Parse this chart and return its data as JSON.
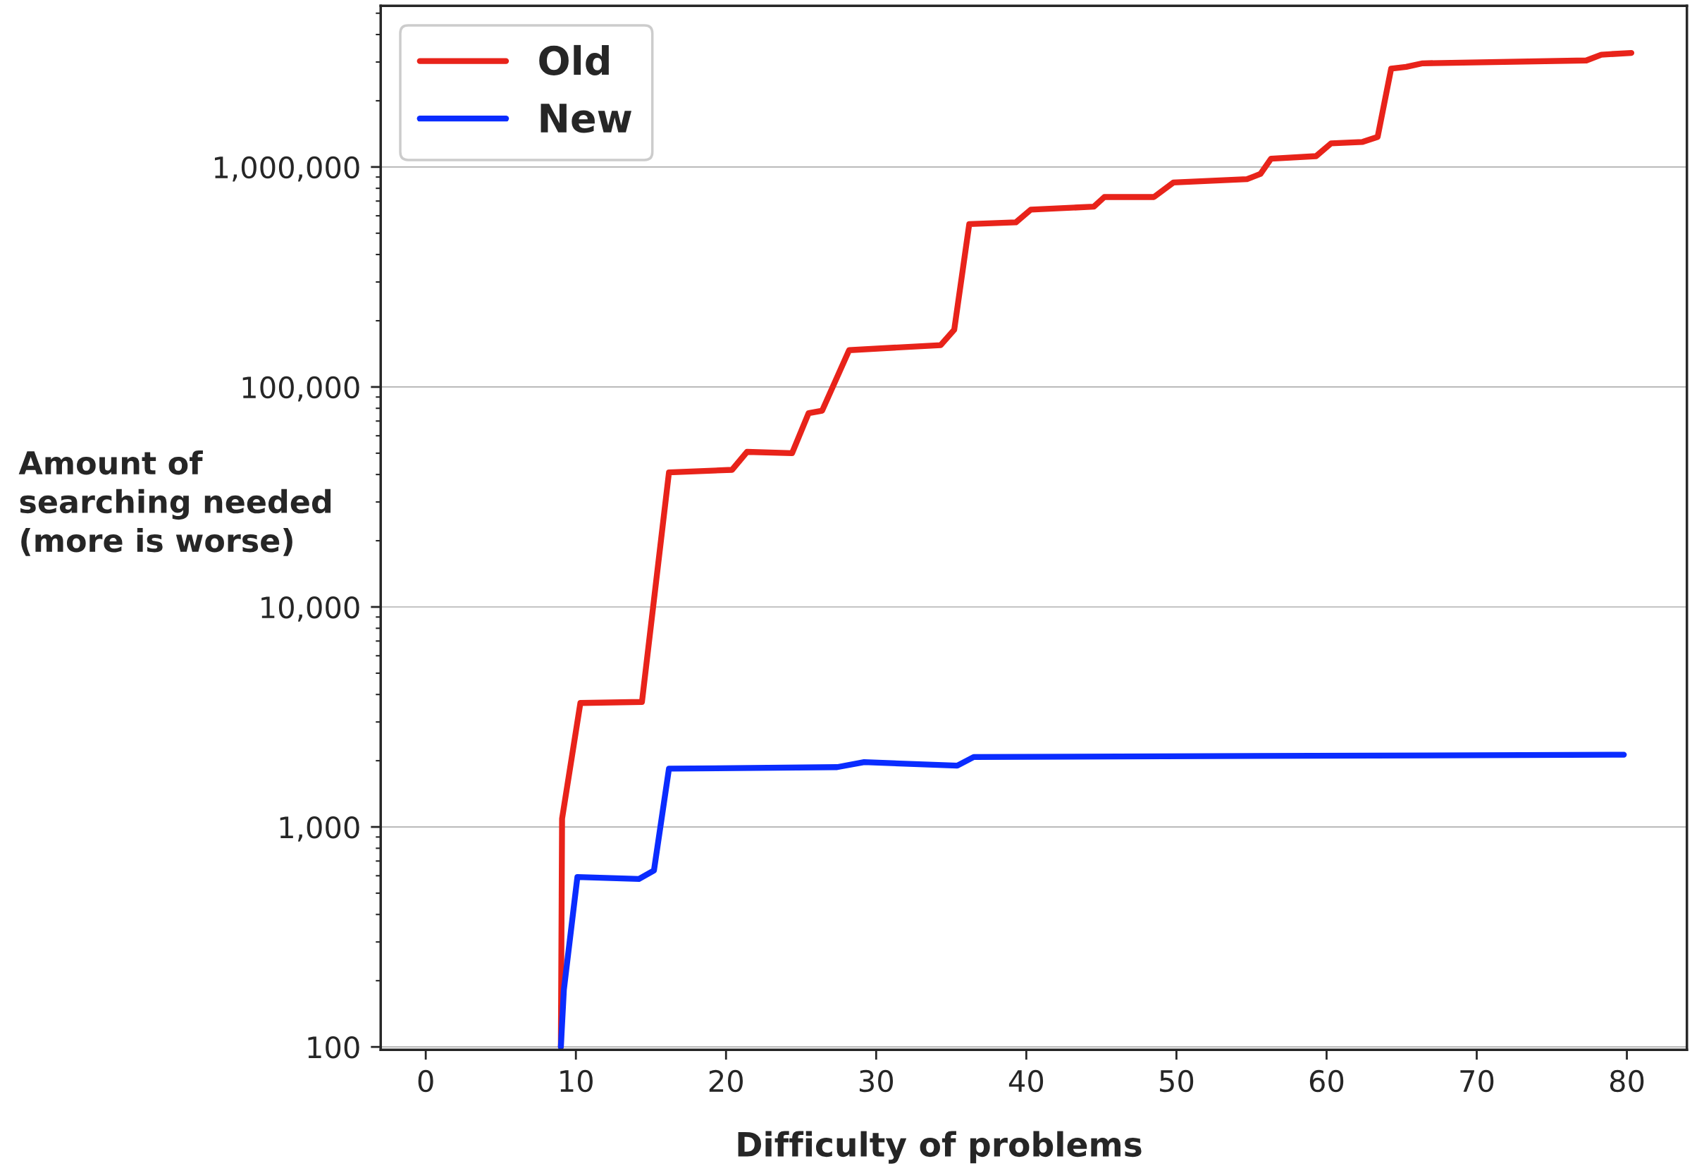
{
  "chart_data": {
    "type": "line",
    "xlabel": "Difficulty of problems",
    "ylabel": "Amount of\nsearching needed\n(more is worse)",
    "series": [
      {
        "name": "Old",
        "color": "#e8231a",
        "x": [
          9.0,
          9.08,
          10.3,
          14.4,
          16.2,
          20.4,
          21.4,
          24.4,
          25.5,
          26.4,
          28.2,
          34.3,
          35.2,
          36.2,
          39.3,
          40.3,
          44.5,
          45.2,
          48.5,
          49.8,
          54.7,
          55.6,
          56.3,
          59.3,
          60.3,
          62.4,
          63.4,
          64.3,
          65.3,
          66.4,
          77.3,
          78.3,
          80.3
        ],
        "values": [
          100,
          1090,
          3660,
          3700,
          40900,
          42000,
          50700,
          50000,
          76000,
          78000,
          147000,
          155000,
          182000,
          550000,
          560000,
          640000,
          660000,
          730000,
          730000,
          850000,
          880000,
          930000,
          1090000,
          1120000,
          1280000,
          1300000,
          1370000,
          2800000,
          2850000,
          2960000,
          3050000,
          3240000,
          3300000
        ]
      },
      {
        "name": "New",
        "color": "#0a2cff",
        "x": [
          9.0,
          9.2,
          10.1,
          14.2,
          15.2,
          16.2,
          27.4,
          29.2,
          35.4,
          36.5,
          79.8
        ],
        "values": [
          100,
          182,
          592,
          580,
          634,
          1840,
          1870,
          1970,
          1900,
          2080,
          2130
        ]
      }
    ],
    "log": "y",
    "xlim": [
      -3,
      84
    ],
    "ylim": [
      97,
      5400000
    ],
    "xticks": [
      0,
      10,
      20,
      30,
      40,
      50,
      60,
      70,
      80
    ],
    "yticks": [
      {
        "value": 100,
        "label": "100"
      },
      {
        "value": 1000,
        "label": "1,000"
      },
      {
        "value": 10000,
        "label": "10,000"
      },
      {
        "value": 100000,
        "label": "100,000"
      },
      {
        "value": 1000000,
        "label": "1,000,000"
      }
    ],
    "grid": "y",
    "legend": "top left",
    "line_style": "solid"
  }
}
